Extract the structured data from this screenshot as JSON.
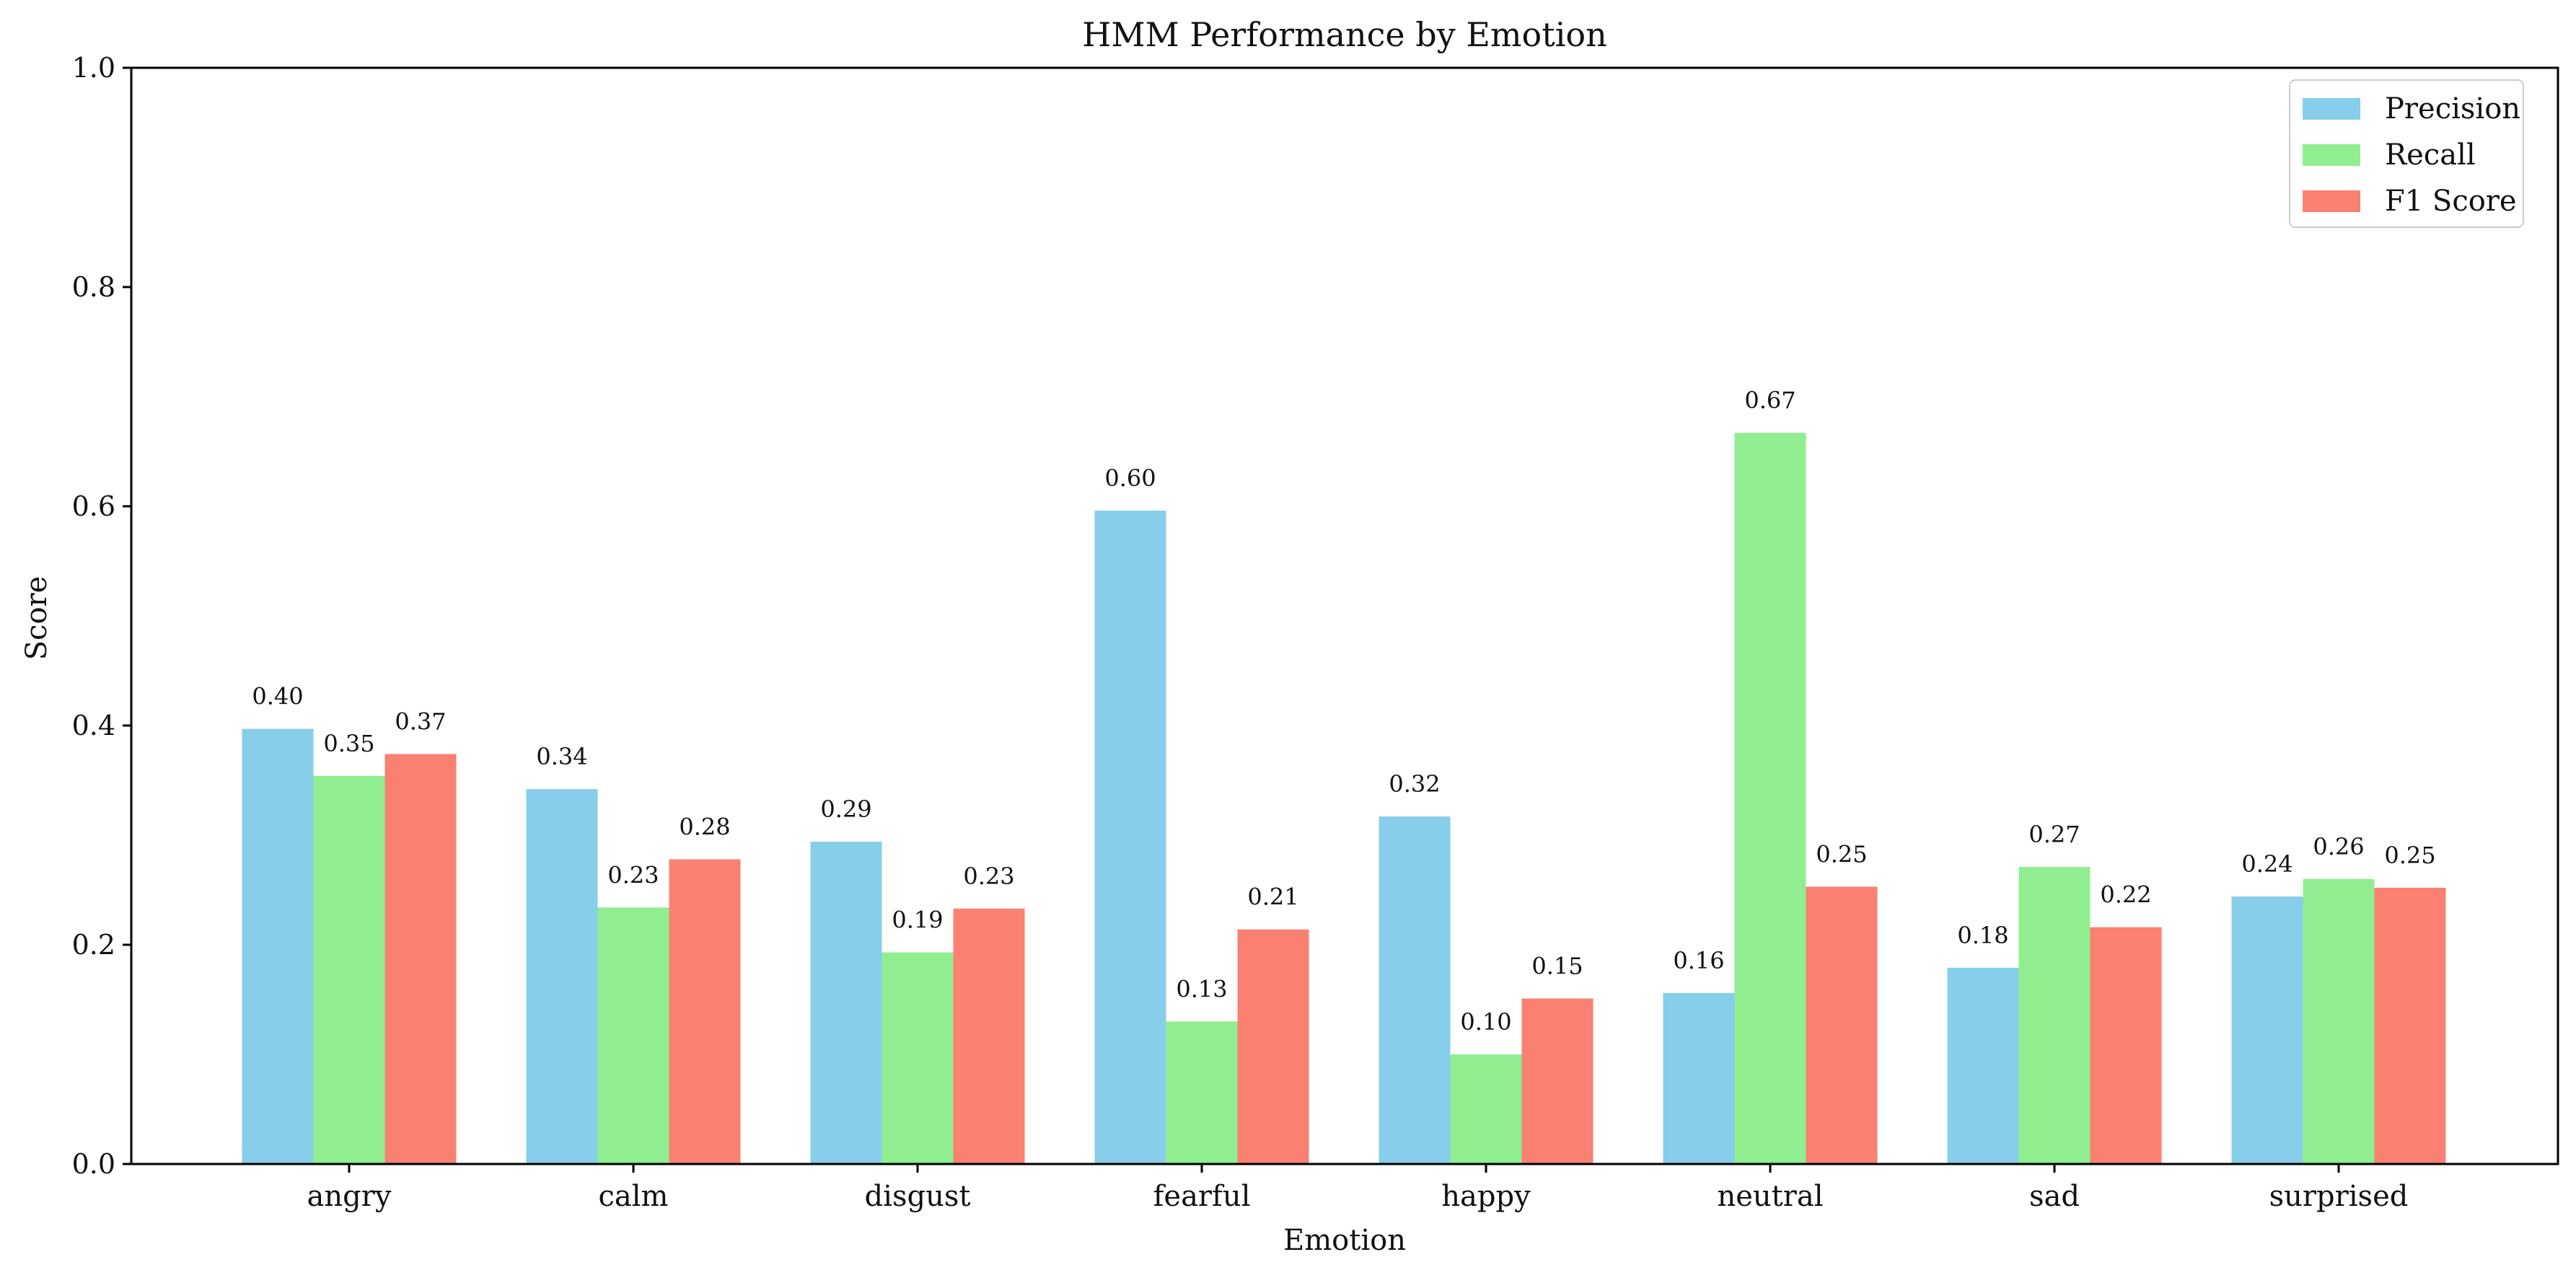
{
  "chart_data": {
    "type": "bar",
    "title": "HMM Performance by Emotion",
    "xlabel": "Emotion",
    "ylabel": "Score",
    "ylim": [
      0,
      1.0
    ],
    "yticks": [
      "0.0",
      "0.2",
      "0.4",
      "0.6",
      "0.8",
      "1.0"
    ],
    "categories": [
      "angry",
      "calm",
      "disgust",
      "fearful",
      "happy",
      "neutral",
      "sad",
      "surprised"
    ],
    "series": [
      {
        "name": "Precision",
        "color": "#87CEEB",
        "values": [
          0.397,
          0.342,
          0.294,
          0.596,
          0.317,
          0.156,
          0.179,
          0.244
        ],
        "labels": [
          "0.40",
          "0.34",
          "0.29",
          "0.60",
          "0.32",
          "0.16",
          "0.18",
          "0.24"
        ]
      },
      {
        "name": "Recall",
        "color": "#90EE90",
        "values": [
          0.354,
          0.234,
          0.193,
          0.13,
          0.1,
          0.667,
          0.271,
          0.26
        ],
        "labels": [
          "0.35",
          "0.23",
          "0.19",
          "0.13",
          "0.10",
          "0.67",
          "0.27",
          "0.26"
        ]
      },
      {
        "name": "F1 Score",
        "color": "#FA8072",
        "values": [
          0.374,
          0.278,
          0.233,
          0.214,
          0.151,
          0.253,
          0.216,
          0.252
        ],
        "labels": [
          "0.37",
          "0.28",
          "0.23",
          "0.21",
          "0.15",
          "0.25",
          "0.22",
          "0.25"
        ]
      }
    ],
    "legend_position": "top-right",
    "grid": false
  }
}
